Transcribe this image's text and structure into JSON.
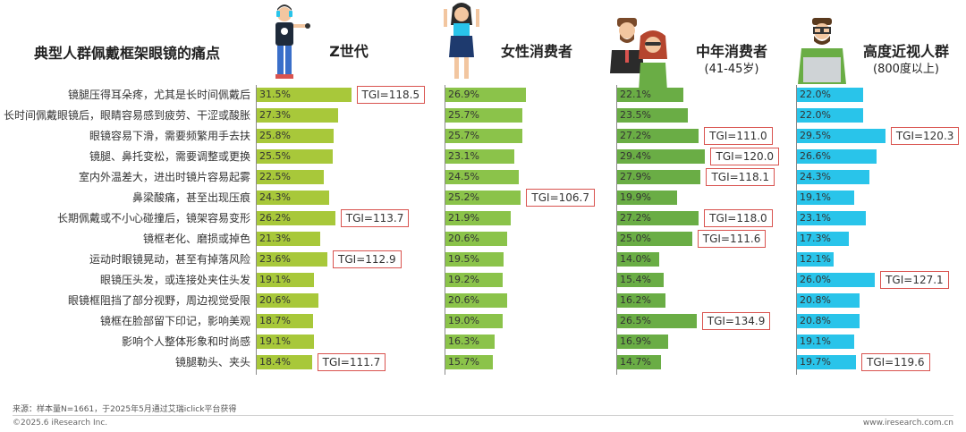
{
  "title": "典型人群佩戴框架眼镜的痛点",
  "columns": [
    {
      "key": "genz",
      "title": "Z世代",
      "subtitle": ""
    },
    {
      "key": "female",
      "title": "女性消费者",
      "subtitle": ""
    },
    {
      "key": "middle",
      "title": "中年消费者",
      "subtitle": "(41-45岁)"
    },
    {
      "key": "myopia",
      "title": "高度近视人群",
      "subtitle": "(800度以上)"
    }
  ],
  "colors": {
    "genz": "#a8c83a",
    "female": "#8bc34a",
    "middle": "#6aad45",
    "myopia": "#29c4ea",
    "tgi_border": "#d9534f"
  },
  "chart_data": {
    "type": "bar",
    "categories": [
      "镜腿压得耳朵疼，尤其是长时间佩戴后",
      "长时间佩戴眼镜后，眼睛容易感到疲劳、干涩或酸胀",
      "眼镜容易下滑，需要频繁用手去扶",
      "镜腿、鼻托变松，需要调整或更换",
      "室内外温差大，进出时镜片容易起雾",
      "鼻梁酸痛，甚至出现压痕",
      "长期佩戴或不小心碰撞后，镜架容易变形",
      "镜框老化、磨损或掉色",
      "运动时眼镜晃动，甚至有掉落风险",
      "眼镜压头发，或连接处夹住头发",
      "眼镜框阻挡了部分视野，周边视觉受限",
      "镜框在脸部留下印记，影响美观",
      "影响个人整体形象和时尚感",
      "镜腿勒头、夹头"
    ],
    "series": [
      {
        "name": "Z世代",
        "values": [
          31.5,
          27.3,
          25.8,
          25.5,
          22.5,
          24.3,
          26.2,
          21.3,
          23.6,
          19.1,
          20.6,
          18.7,
          19.1,
          18.4
        ],
        "labels": [
          "31.5%",
          "27.3%",
          "25.8%",
          "25.5%",
          "22.5%",
          "24.3%",
          "26.2%",
          "21.3%",
          "23.6%",
          "19.1%",
          "20.6%",
          "18.7%",
          "19.1%",
          "18.4%"
        ],
        "tgi": [
          {
            "index": 0,
            "text": "TGI=118.5"
          },
          {
            "index": 6,
            "text": "TGI=113.7"
          },
          {
            "index": 8,
            "text": "TGI=112.9"
          },
          {
            "index": 13,
            "text": "TGI=111.7"
          }
        ]
      },
      {
        "name": "女性消费者",
        "values": [
          26.9,
          25.7,
          25.7,
          23.1,
          24.5,
          25.2,
          21.9,
          20.6,
          19.5,
          19.2,
          20.6,
          19.0,
          16.3,
          15.7
        ],
        "labels": [
          "26.9%",
          "25.7%",
          "25.7%",
          "23.1%",
          "24.5%",
          "25.2%",
          "21.9%",
          "20.6%",
          "19.5%",
          "19.2%",
          "20.6%",
          "19.0%",
          "16.3%",
          "15.7%"
        ],
        "tgi": [
          {
            "index": 5,
            "text": "TGI=106.7"
          }
        ]
      },
      {
        "name": "中年消费者(41-45岁)",
        "values": [
          22.1,
          23.5,
          27.2,
          29.4,
          27.9,
          19.9,
          27.2,
          25.0,
          14.0,
          15.4,
          16.2,
          26.5,
          16.9,
          14.7
        ],
        "labels": [
          "22.1%",
          "23.5%",
          "27.2%",
          "29.4%",
          "27.9%",
          "19.9%",
          "27.2%",
          "25.0%",
          "14.0%",
          "15.4%",
          "16.2%",
          "26.5%",
          "16.9%",
          "14.7%"
        ],
        "tgi": [
          {
            "index": 2,
            "text": "TGI=111.0"
          },
          {
            "index": 3,
            "text": "TGI=120.0"
          },
          {
            "index": 4,
            "text": "TGI=118.1"
          },
          {
            "index": 6,
            "text": "TGI=118.0"
          },
          {
            "index": 7,
            "text": "TGI=111.6"
          },
          {
            "index": 11,
            "text": "TGI=134.9"
          }
        ]
      },
      {
        "name": "高度近视人群(800度以上)",
        "values": [
          22.0,
          22.0,
          29.5,
          26.6,
          24.3,
          19.1,
          23.1,
          17.3,
          12.1,
          26.0,
          20.8,
          20.8,
          19.1,
          19.7
        ],
        "labels": [
          "22.0%",
          "22.0%",
          "29.5%",
          "26.6%",
          "24.3%",
          "19.1%",
          "23.1%",
          "17.3%",
          "12.1%",
          "26.0%",
          "20.8%",
          "20.8%",
          "19.1%",
          "19.7%"
        ],
        "tgi": [
          {
            "index": 2,
            "text": "TGI=120.3"
          },
          {
            "index": 9,
            "text": "TGI=127.1"
          },
          {
            "index": 13,
            "text": "TGI=119.6"
          }
        ]
      }
    ]
  },
  "footer": {
    "source": "来源：样本量N=1661，于2025年5月通过艾瑞iclick平台获得",
    "copyright": "©2025.6 iResearch Inc.",
    "url": "www.iresearch.com.cn"
  }
}
